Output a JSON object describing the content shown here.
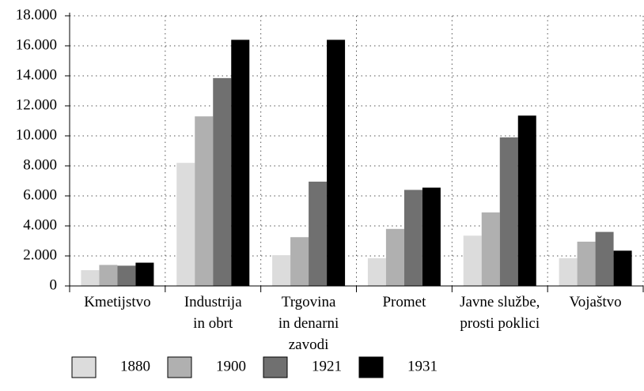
{
  "chart_data": {
    "type": "bar",
    "categories": [
      "Kmetijstvo",
      "Industrija\nin obrt",
      "Trgovina\nin denarni\nzavodi",
      "Promet",
      "Javne službe,\nprosti poklici",
      "Vojaštvo"
    ],
    "series": [
      {
        "name": "1880",
        "color": "#dcdcdc",
        "values": [
          1050,
          8200,
          2050,
          1850,
          3350,
          1850
        ]
      },
      {
        "name": "1900",
        "color": "#b0b0b0",
        "values": [
          1400,
          11300,
          3250,
          3800,
          4900,
          2950
        ]
      },
      {
        "name": "1921",
        "color": "#707070",
        "values": [
          1350,
          13850,
          6950,
          6400,
          9900,
          3600
        ]
      },
      {
        "name": "1931",
        "color": "#000000",
        "values": [
          1550,
          16400,
          16400,
          6550,
          11350,
          2350
        ]
      }
    ],
    "ylim": [
      0,
      18000
    ],
    "yticks": [
      0,
      {
        "value": 2000,
        "label": "2.000"
      },
      {
        "value": 4000,
        "label": "4.000"
      },
      {
        "value": 6000,
        "label": "6.000"
      },
      {
        "value": 8000,
        "label": "8.000"
      },
      {
        "value": 10000,
        "label": "10.000"
      },
      {
        "value": 12000,
        "label": "12.000"
      },
      {
        "value": 14000,
        "label": "14.000"
      },
      {
        "value": 16000,
        "label": "16.000"
      },
      {
        "value": 18000,
        "label": "18.000"
      }
    ],
    "grid": true,
    "legend": "bottom"
  }
}
